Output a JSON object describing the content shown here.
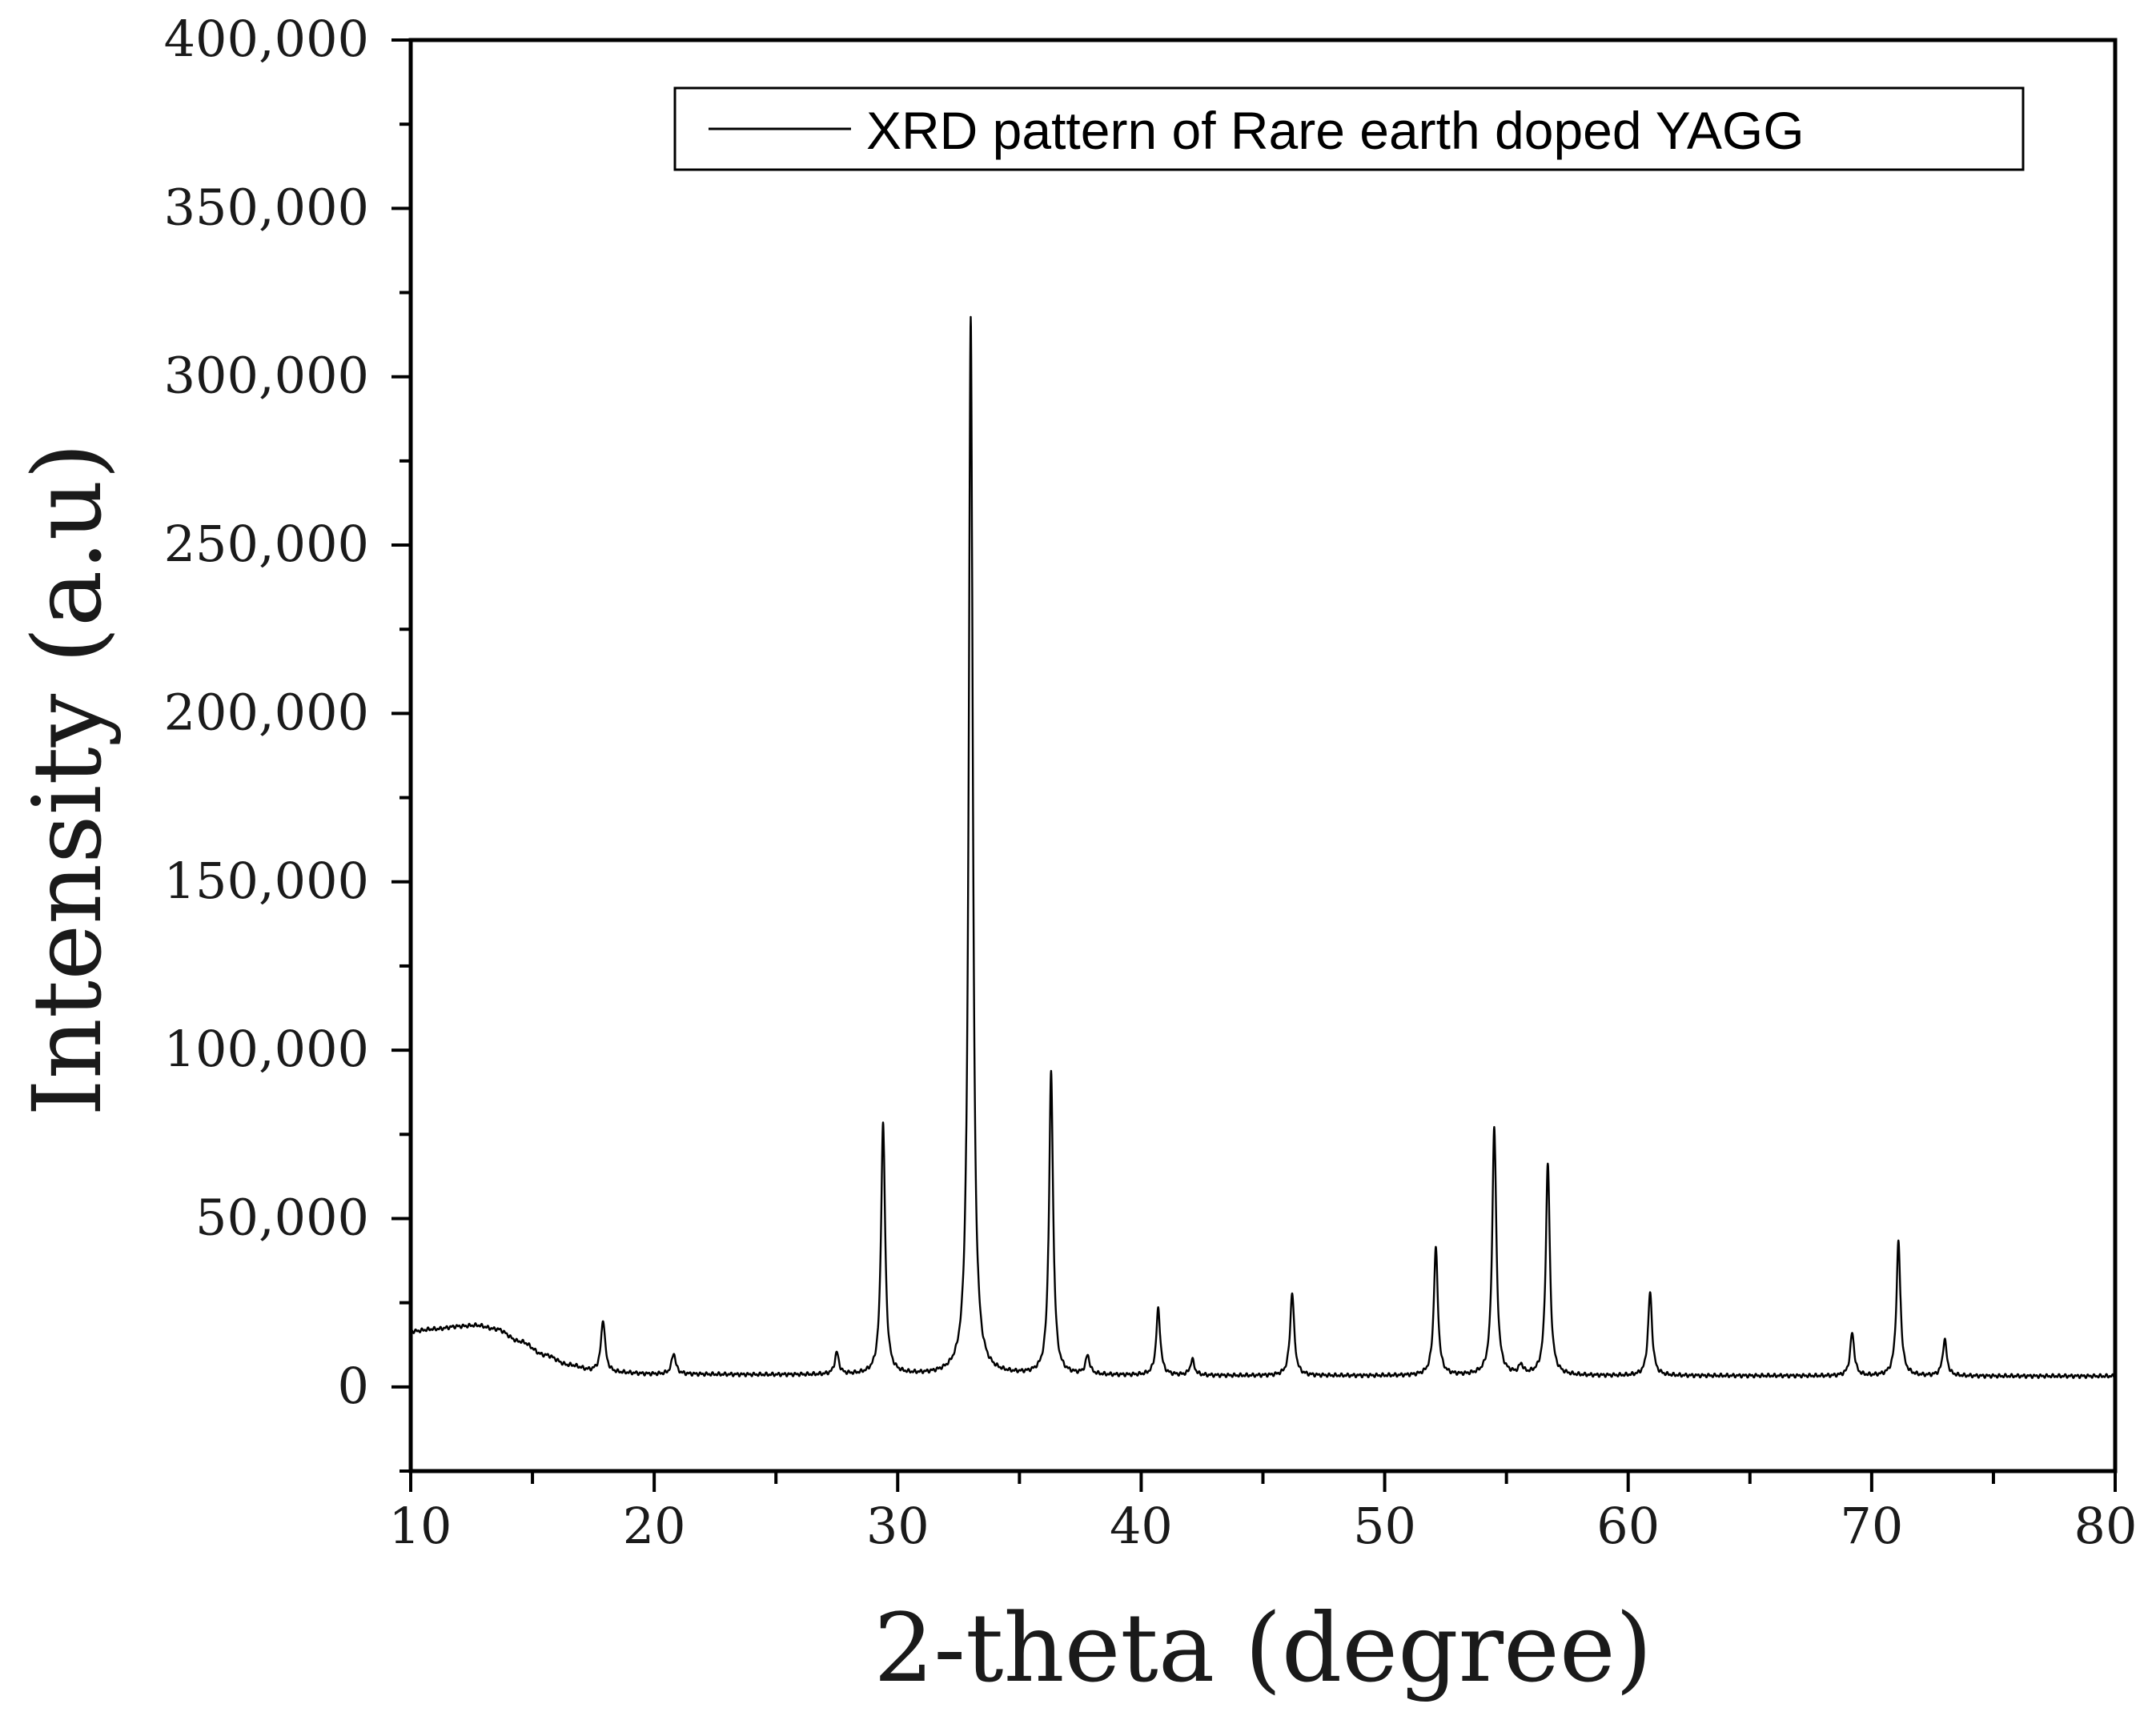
{
  "chart_data": {
    "type": "line",
    "title": "",
    "xlabel": "2-theta (degree)",
    "ylabel": "Intensity (a.u)",
    "xlim": [
      10,
      80
    ],
    "ylim": [
      -25000,
      400000
    ],
    "xticks": [
      10,
      20,
      30,
      40,
      50,
      60,
      70,
      80
    ],
    "xtick_labels": [
      "10",
      "20",
      "30",
      "40",
      "50",
      "60",
      "70",
      "80"
    ],
    "yticks": [
      0,
      50000,
      100000,
      150000,
      200000,
      250000,
      300000,
      350000,
      400000
    ],
    "ytick_labels": [
      "0",
      "50,000",
      "100,000",
      "150,000",
      "200,000",
      "250,000",
      "300,000",
      "350,000",
      "400,000"
    ],
    "grid": false,
    "legend_position": "top-right",
    "colors": {
      "line": "#000000",
      "axis": "#000000"
    },
    "series": [
      {
        "name": "XRD pattern of Rare earth doped YAGG",
        "baseline": [
          [
            10,
            16500
          ],
          [
            11,
            17200
          ],
          [
            12,
            18000
          ],
          [
            12.7,
            18300
          ],
          [
            13.5,
            17200
          ],
          [
            14.5,
            13500
          ],
          [
            15.5,
            9500
          ],
          [
            16.5,
            6500
          ],
          [
            17.5,
            4800
          ],
          [
            18.5,
            4200
          ],
          [
            20,
            3800
          ],
          [
            25,
            3600
          ],
          [
            30,
            3500
          ],
          [
            35,
            3500
          ],
          [
            40,
            3400
          ],
          [
            45,
            3300
          ],
          [
            50,
            3300
          ],
          [
            55,
            3300
          ],
          [
            60,
            3300
          ],
          [
            65,
            3300
          ],
          [
            70,
            3200
          ],
          [
            75,
            3200
          ],
          [
            80,
            3200
          ]
        ],
        "peaks": [
          {
            "x": 17.9,
            "y": 20000
          },
          {
            "x": 20.8,
            "y": 10000
          },
          {
            "x": 27.5,
            "y": 10000
          },
          {
            "x": 29.4,
            "y": 78000
          },
          {
            "x": 33.0,
            "y": 318000
          },
          {
            "x": 34.6,
            "y": 3500
          },
          {
            "x": 36.3,
            "y": 93000
          },
          {
            "x": 37.8,
            "y": 9000
          },
          {
            "x": 40.7,
            "y": 23000
          },
          {
            "x": 42.1,
            "y": 8000
          },
          {
            "x": 46.2,
            "y": 28000
          },
          {
            "x": 52.1,
            "y": 41000
          },
          {
            "x": 54.5,
            "y": 77000
          },
          {
            "x": 55.6,
            "y": 6000
          },
          {
            "x": 56.7,
            "y": 66000
          },
          {
            "x": 60.9,
            "y": 28000
          },
          {
            "x": 69.2,
            "y": 16000
          },
          {
            "x": 71.1,
            "y": 43000
          },
          {
            "x": 73.0,
            "y": 14000
          }
        ]
      }
    ]
  }
}
